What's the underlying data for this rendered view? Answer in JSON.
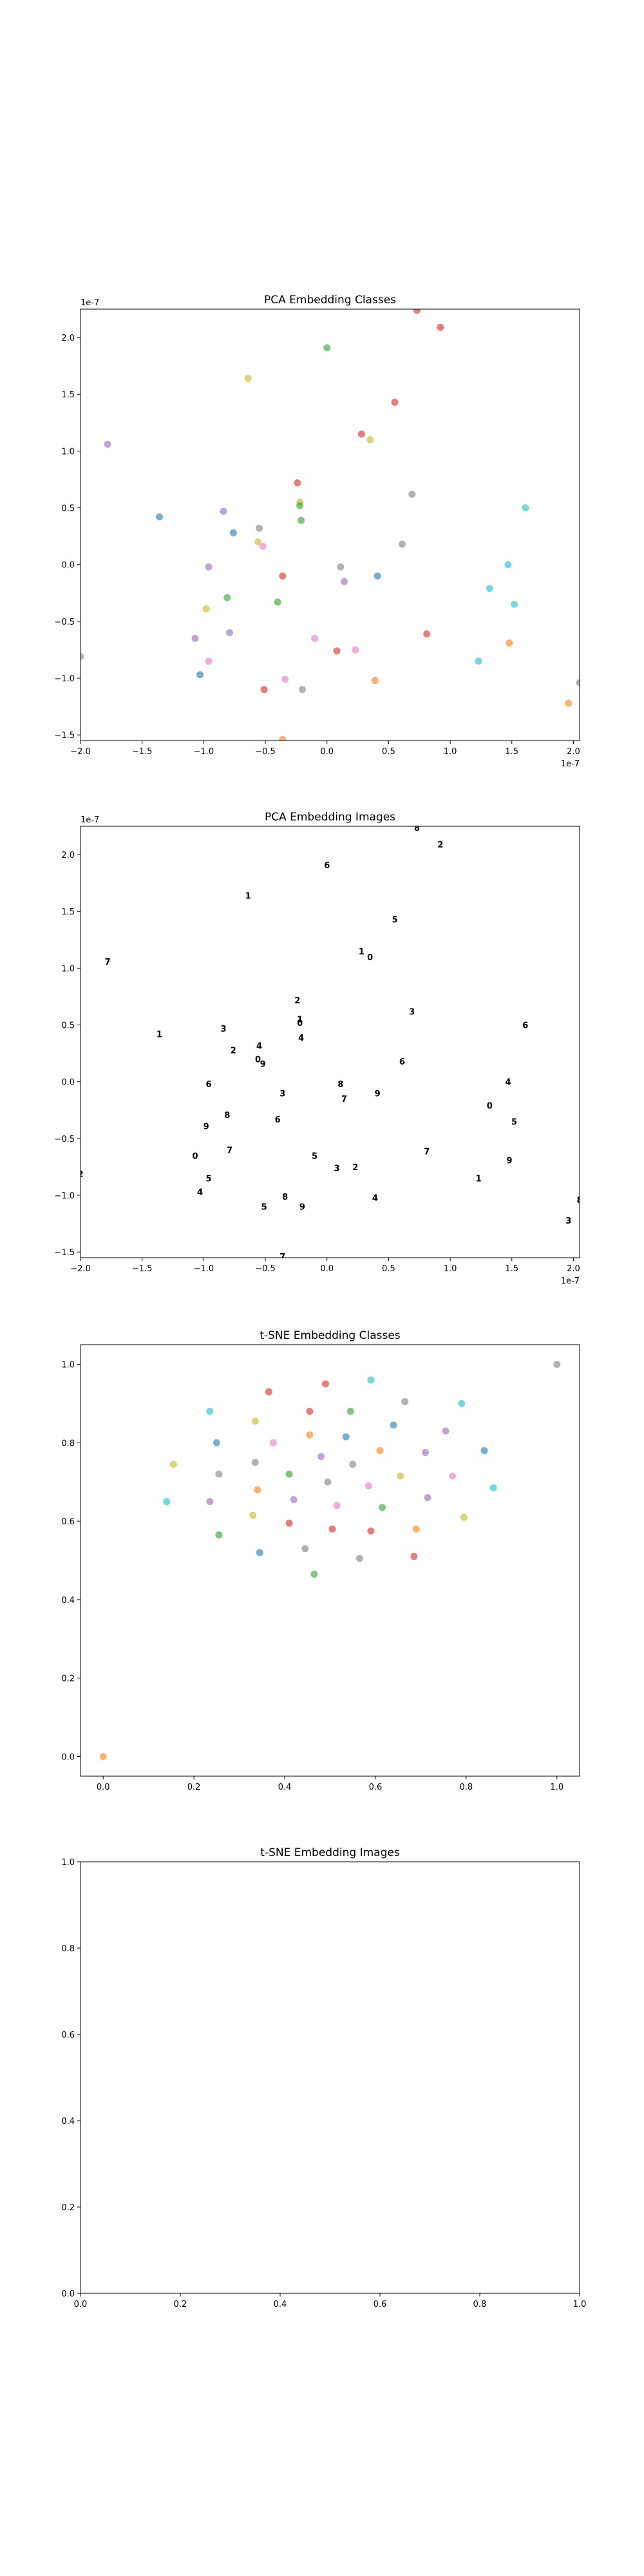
{
  "figure": {
    "background": "#ffffff"
  },
  "chart_data": [
    {
      "type": "scatter",
      "title": "PCA Embedding Classes",
      "xlabel": "",
      "ylabel": "",
      "xlim": [
        -2.0,
        2.05
      ],
      "ylim": [
        -1.55,
        2.25
      ],
      "x_offset_text": "1e-7",
      "y_offset_text": "1e-7",
      "xticks": [
        -2.0,
        -1.5,
        -1.0,
        -0.5,
        0.0,
        0.5,
        1.0,
        1.5,
        2.0
      ],
      "xtick_labels": [
        "−2.0",
        "−1.5",
        "−1.0",
        "−0.5",
        "0.0",
        "0.5",
        "1.0",
        "1.5",
        "2.0"
      ],
      "yticks": [
        -1.5,
        -1.0,
        -0.5,
        0.0,
        0.5,
        1.0,
        1.5,
        2.0
      ],
      "ytick_labels": [
        "−1.5",
        "−1.0",
        "−0.5",
        "0.0",
        "0.5",
        "1.0",
        "1.5",
        "2.0"
      ],
      "grid": false,
      "marker_alpha": 0.6,
      "points": [
        {
          "x": -1.78,
          "y": 1.06,
          "color": "#9467bd"
        },
        {
          "x": -2.0,
          "y": -0.81,
          "color": "#7f7f7f"
        },
        {
          "x": -1.36,
          "y": 0.42,
          "color": "#1f77b4"
        },
        {
          "x": -1.07,
          "y": -0.65,
          "color": "#9467bd"
        },
        {
          "x": -1.03,
          "y": -0.97,
          "color": "#1f77b4"
        },
        {
          "x": -0.98,
          "y": -0.39,
          "color": "#bcbd22"
        },
        {
          "x": -0.96,
          "y": -0.85,
          "color": "#e377c2"
        },
        {
          "x": -0.96,
          "y": -0.02,
          "color": "#9467bd"
        },
        {
          "x": -0.84,
          "y": 0.47,
          "color": "#9467bd"
        },
        {
          "x": -0.81,
          "y": -0.29,
          "color": "#2ca02c"
        },
        {
          "x": -0.79,
          "y": -0.6,
          "color": "#9467bd"
        },
        {
          "x": -0.76,
          "y": 0.28,
          "color": "#1f77b4"
        },
        {
          "x": -0.64,
          "y": 1.64,
          "color": "#bcbd22"
        },
        {
          "x": -0.56,
          "y": 0.2,
          "color": "#bcbd22"
        },
        {
          "x": -0.55,
          "y": 0.32,
          "color": "#7f7f7f"
        },
        {
          "x": -0.52,
          "y": 0.16,
          "color": "#e377c2"
        },
        {
          "x": -0.51,
          "y": -1.1,
          "color": "#d62728"
        },
        {
          "x": -0.4,
          "y": -0.33,
          "color": "#2ca02c"
        },
        {
          "x": -0.36,
          "y": -0.1,
          "color": "#d62728"
        },
        {
          "x": -0.34,
          "y": -1.01,
          "color": "#e377c2"
        },
        {
          "x": -0.36,
          "y": -1.54,
          "color": "#ff7f0e"
        },
        {
          "x": -0.24,
          "y": 0.72,
          "color": "#d62728"
        },
        {
          "x": -0.22,
          "y": 0.55,
          "color": "#bcbd22"
        },
        {
          "x": -0.22,
          "y": 0.52,
          "color": "#2ca02c"
        },
        {
          "x": -0.21,
          "y": 0.39,
          "color": "#2ca02c"
        },
        {
          "x": -0.2,
          "y": -1.1,
          "color": "#7f7f7f"
        },
        {
          "x": -0.1,
          "y": -0.65,
          "color": "#e377c2"
        },
        {
          "x": 0.0,
          "y": 1.91,
          "color": "#2ca02c"
        },
        {
          "x": 0.08,
          "y": -0.76,
          "color": "#d62728"
        },
        {
          "x": 0.11,
          "y": -0.02,
          "color": "#7f7f7f"
        },
        {
          "x": 0.14,
          "y": -0.15,
          "color": "#9467bd"
        },
        {
          "x": 0.23,
          "y": -0.75,
          "color": "#e377c2"
        },
        {
          "x": 0.28,
          "y": 1.15,
          "color": "#d62728"
        },
        {
          "x": 0.35,
          "y": 1.1,
          "color": "#bcbd22"
        },
        {
          "x": 0.39,
          "y": -1.02,
          "color": "#ff7f0e"
        },
        {
          "x": 0.41,
          "y": -0.1,
          "color": "#1f77b4"
        },
        {
          "x": 0.55,
          "y": 1.43,
          "color": "#d62728"
        },
        {
          "x": 0.61,
          "y": 0.18,
          "color": "#7f7f7f"
        },
        {
          "x": 0.69,
          "y": 0.62,
          "color": "#7f7f7f"
        },
        {
          "x": 0.73,
          "y": 2.24,
          "color": "#d62728"
        },
        {
          "x": 0.81,
          "y": -0.61,
          "color": "#d62728"
        },
        {
          "x": 0.92,
          "y": 2.09,
          "color": "#d62728"
        },
        {
          "x": 1.23,
          "y": -0.85,
          "color": "#17becf"
        },
        {
          "x": 1.32,
          "y": -0.21,
          "color": "#17becf"
        },
        {
          "x": 1.47,
          "y": 0.0,
          "color": "#17becf"
        },
        {
          "x": 1.48,
          "y": -0.69,
          "color": "#ff7f0e"
        },
        {
          "x": 1.52,
          "y": -0.35,
          "color": "#17becf"
        },
        {
          "x": 1.61,
          "y": 0.5,
          "color": "#17becf"
        },
        {
          "x": 1.96,
          "y": -1.22,
          "color": "#ff7f0e"
        },
        {
          "x": 2.05,
          "y": -1.04,
          "color": "#7f7f7f"
        }
      ]
    },
    {
      "type": "scatter",
      "title": "PCA Embedding Images",
      "xlabel": "",
      "ylabel": "",
      "xlim": [
        -2.0,
        2.05
      ],
      "ylim": [
        -1.55,
        2.25
      ],
      "x_offset_text": "1e-7",
      "y_offset_text": "1e-7",
      "xticks": [
        -2.0,
        -1.5,
        -1.0,
        -0.5,
        0.0,
        0.5,
        1.0,
        1.5,
        2.0
      ],
      "xtick_labels": [
        "−2.0",
        "−1.5",
        "−1.0",
        "−0.5",
        "0.0",
        "0.5",
        "1.0",
        "1.5",
        "2.0"
      ],
      "yticks": [
        -1.5,
        -1.0,
        -0.5,
        0.0,
        0.5,
        1.0,
        1.5,
        2.0
      ],
      "ytick_labels": [
        "−1.5",
        "−1.0",
        "−0.5",
        "0.0",
        "0.5",
        "1.0",
        "1.5",
        "2.0"
      ],
      "grid": false,
      "marker": "image",
      "points": [
        {
          "x": -1.78,
          "y": 1.06
        },
        {
          "x": -2.0,
          "y": -0.81
        },
        {
          "x": -1.36,
          "y": 0.42
        },
        {
          "x": -1.07,
          "y": -0.65
        },
        {
          "x": -1.03,
          "y": -0.97
        },
        {
          "x": -0.98,
          "y": -0.39
        },
        {
          "x": -0.96,
          "y": -0.85
        },
        {
          "x": -0.96,
          "y": -0.02
        },
        {
          "x": -0.84,
          "y": 0.47
        },
        {
          "x": -0.81,
          "y": -0.29
        },
        {
          "x": -0.79,
          "y": -0.6
        },
        {
          "x": -0.76,
          "y": 0.28
        },
        {
          "x": -0.64,
          "y": 1.64
        },
        {
          "x": -0.56,
          "y": 0.2
        },
        {
          "x": -0.55,
          "y": 0.32
        },
        {
          "x": -0.52,
          "y": 0.16
        },
        {
          "x": -0.51,
          "y": -1.1
        },
        {
          "x": -0.4,
          "y": -0.33
        },
        {
          "x": -0.36,
          "y": -0.1
        },
        {
          "x": -0.34,
          "y": -1.01
        },
        {
          "x": -0.36,
          "y": -1.54
        },
        {
          "x": -0.24,
          "y": 0.72
        },
        {
          "x": -0.22,
          "y": 0.55
        },
        {
          "x": -0.22,
          "y": 0.52
        },
        {
          "x": -0.21,
          "y": 0.39
        },
        {
          "x": -0.2,
          "y": -1.1
        },
        {
          "x": -0.1,
          "y": -0.65
        },
        {
          "x": 0.0,
          "y": 1.91
        },
        {
          "x": 0.08,
          "y": -0.76
        },
        {
          "x": 0.11,
          "y": -0.02
        },
        {
          "x": 0.14,
          "y": -0.15
        },
        {
          "x": 0.23,
          "y": -0.75
        },
        {
          "x": 0.28,
          "y": 1.15
        },
        {
          "x": 0.35,
          "y": 1.1
        },
        {
          "x": 0.39,
          "y": -1.02
        },
        {
          "x": 0.41,
          "y": -0.1
        },
        {
          "x": 0.55,
          "y": 1.43
        },
        {
          "x": 0.61,
          "y": 0.18
        },
        {
          "x": 0.69,
          "y": 0.62
        },
        {
          "x": 0.73,
          "y": 2.24
        },
        {
          "x": 0.81,
          "y": -0.61
        },
        {
          "x": 0.92,
          "y": 2.09
        },
        {
          "x": 1.23,
          "y": -0.85
        },
        {
          "x": 1.32,
          "y": -0.21
        },
        {
          "x": 1.47,
          "y": 0.0
        },
        {
          "x": 1.48,
          "y": -0.69
        },
        {
          "x": 1.52,
          "y": -0.35
        },
        {
          "x": 1.61,
          "y": 0.5
        },
        {
          "x": 1.96,
          "y": -1.22
        },
        {
          "x": 2.05,
          "y": -1.04
        }
      ]
    },
    {
      "type": "scatter",
      "title": "t-SNE Embedding Classes",
      "xlabel": "",
      "ylabel": "",
      "xlim": [
        -0.05,
        1.05
      ],
      "ylim": [
        -0.05,
        1.05
      ],
      "xticks": [
        0.0,
        0.2,
        0.4,
        0.6,
        0.8,
        1.0
      ],
      "xtick_labels": [
        "0.0",
        "0.2",
        "0.4",
        "0.6",
        "0.8",
        "1.0"
      ],
      "yticks": [
        0.0,
        0.2,
        0.4,
        0.6,
        0.8,
        1.0
      ],
      "ytick_labels": [
        "0.0",
        "0.2",
        "0.4",
        "0.6",
        "0.8",
        "1.0"
      ],
      "grid": false,
      "marker_alpha": 0.6,
      "points": [
        {
          "x": 0.0,
          "y": 0.0,
          "color": "#ff7f0e"
        },
        {
          "x": 1.0,
          "y": 1.0,
          "color": "#7f7f7f"
        },
        {
          "x": 0.14,
          "y": 0.65,
          "color": "#17becf"
        },
        {
          "x": 0.155,
          "y": 0.745,
          "color": "#bcbd22"
        },
        {
          "x": 0.235,
          "y": 0.88,
          "color": "#17becf"
        },
        {
          "x": 0.235,
          "y": 0.65,
          "color": "#9467bd"
        },
        {
          "x": 0.25,
          "y": 0.8,
          "color": "#1f77b4"
        },
        {
          "x": 0.255,
          "y": 0.72,
          "color": "#7f7f7f"
        },
        {
          "x": 0.255,
          "y": 0.565,
          "color": "#2ca02c"
        },
        {
          "x": 0.33,
          "y": 0.615,
          "color": "#bcbd22"
        },
        {
          "x": 0.335,
          "y": 0.75,
          "color": "#7f7f7f"
        },
        {
          "x": 0.335,
          "y": 0.855,
          "color": "#bcbd22"
        },
        {
          "x": 0.34,
          "y": 0.68,
          "color": "#ff7f0e"
        },
        {
          "x": 0.345,
          "y": 0.52,
          "color": "#1f77b4"
        },
        {
          "x": 0.365,
          "y": 0.93,
          "color": "#d62728"
        },
        {
          "x": 0.375,
          "y": 0.8,
          "color": "#e377c2"
        },
        {
          "x": 0.41,
          "y": 0.72,
          "color": "#2ca02c"
        },
        {
          "x": 0.41,
          "y": 0.595,
          "color": "#d62728"
        },
        {
          "x": 0.42,
          "y": 0.655,
          "color": "#9467bd"
        },
        {
          "x": 0.445,
          "y": 0.53,
          "color": "#7f7f7f"
        },
        {
          "x": 0.455,
          "y": 0.88,
          "color": "#d62728"
        },
        {
          "x": 0.455,
          "y": 0.82,
          "color": "#ff7f0e"
        },
        {
          "x": 0.465,
          "y": 0.465,
          "color": "#2ca02c"
        },
        {
          "x": 0.48,
          "y": 0.765,
          "color": "#9467bd"
        },
        {
          "x": 0.49,
          "y": 0.95,
          "color": "#d62728"
        },
        {
          "x": 0.495,
          "y": 0.7,
          "color": "#7f7f7f"
        },
        {
          "x": 0.505,
          "y": 0.58,
          "color": "#d62728"
        },
        {
          "x": 0.515,
          "y": 0.64,
          "color": "#e377c2"
        },
        {
          "x": 0.535,
          "y": 0.815,
          "color": "#1f77b4"
        },
        {
          "x": 0.545,
          "y": 0.88,
          "color": "#2ca02c"
        },
        {
          "x": 0.55,
          "y": 0.745,
          "color": "#7f7f7f"
        },
        {
          "x": 0.565,
          "y": 0.505,
          "color": "#7f7f7f"
        },
        {
          "x": 0.585,
          "y": 0.69,
          "color": "#e377c2"
        },
        {
          "x": 0.59,
          "y": 0.575,
          "color": "#d62728"
        },
        {
          "x": 0.59,
          "y": 0.96,
          "color": "#17becf"
        },
        {
          "x": 0.61,
          "y": 0.78,
          "color": "#ff7f0e"
        },
        {
          "x": 0.615,
          "y": 0.635,
          "color": "#2ca02c"
        },
        {
          "x": 0.64,
          "y": 0.845,
          "color": "#1f77b4"
        },
        {
          "x": 0.655,
          "y": 0.715,
          "color": "#bcbd22"
        },
        {
          "x": 0.665,
          "y": 0.905,
          "color": "#7f7f7f"
        },
        {
          "x": 0.685,
          "y": 0.51,
          "color": "#d62728"
        },
        {
          "x": 0.69,
          "y": 0.58,
          "color": "#ff7f0e"
        },
        {
          "x": 0.71,
          "y": 0.775,
          "color": "#9467bd"
        },
        {
          "x": 0.715,
          "y": 0.66,
          "color": "#9467bd"
        },
        {
          "x": 0.755,
          "y": 0.83,
          "color": "#9467bd"
        },
        {
          "x": 0.77,
          "y": 0.715,
          "color": "#e377c2"
        },
        {
          "x": 0.79,
          "y": 0.9,
          "color": "#17becf"
        },
        {
          "x": 0.795,
          "y": 0.61,
          "color": "#bcbd22"
        },
        {
          "x": 0.84,
          "y": 0.78,
          "color": "#1f77b4"
        },
        {
          "x": 0.86,
          "y": 0.685,
          "color": "#17becf"
        }
      ]
    },
    {
      "type": "scatter",
      "title": "t-SNE Embedding Images",
      "xlabel": "",
      "ylabel": "",
      "xlim": [
        0.0,
        1.0
      ],
      "ylim": [
        0.0,
        1.0
      ],
      "xticks": [
        0.0,
        0.2,
        0.4,
        0.6,
        0.8,
        1.0
      ],
      "xtick_labels": [
        "0.0",
        "0.2",
        "0.4",
        "0.6",
        "0.8",
        "1.0"
      ],
      "yticks": [
        0.0,
        0.2,
        0.4,
        0.6,
        0.8,
        1.0
      ],
      "ytick_labels": [
        "0.0",
        "0.2",
        "0.4",
        "0.6",
        "0.8",
        "1.0"
      ],
      "grid": false,
      "points": []
    }
  ]
}
